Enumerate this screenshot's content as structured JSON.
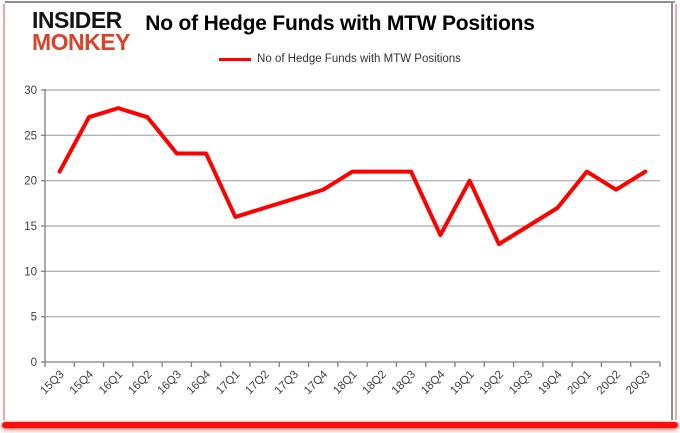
{
  "logo": {
    "line1": "INSIDER",
    "line2": "MONKEY",
    "line1_color": "#151515",
    "line2_color": "#d9432c"
  },
  "header": {
    "title": "No of Hedge Funds with MTW Positions"
  },
  "legend": {
    "label": "No of Hedge Funds with MTW Positions",
    "swatch_color": "#ff0000"
  },
  "chart_data": {
    "type": "line",
    "title": "No of Hedge Funds with MTW Positions",
    "categories": [
      "15Q3",
      "15Q4",
      "16Q1",
      "16Q2",
      "16Q3",
      "16Q4",
      "17Q1",
      "17Q2",
      "17Q3",
      "17Q4",
      "18Q1",
      "18Q2",
      "18Q3",
      "18Q4",
      "19Q1",
      "19Q2",
      "19Q3",
      "19Q4",
      "20Q1",
      "20Q2",
      "20Q3"
    ],
    "series": [
      {
        "name": "No of Hedge Funds with MTW Positions",
        "color": "#ff0000",
        "values": [
          21,
          27,
          28,
          27,
          23,
          23,
          16,
          17,
          18,
          19,
          21,
          21,
          21,
          14,
          20,
          13,
          15,
          17,
          21,
          19,
          21
        ]
      }
    ],
    "xlabel": "",
    "ylabel": "",
    "ylim": [
      0,
      30
    ],
    "yticks": [
      0,
      5,
      10,
      15,
      20,
      25,
      30
    ],
    "grid": true,
    "legend_position": "top-center",
    "styles": {
      "gridline_color": "#a6a6a6",
      "axis_color": "#808080",
      "tick_label_color": "#404040",
      "line_width": 4
    }
  },
  "frame": {
    "top_border_color": "#8f8f8f",
    "right_border_color": "#8f8f8f",
    "side_accent_color": "#f2a8a8",
    "bottom_bar_color": "#fb0b0a"
  }
}
